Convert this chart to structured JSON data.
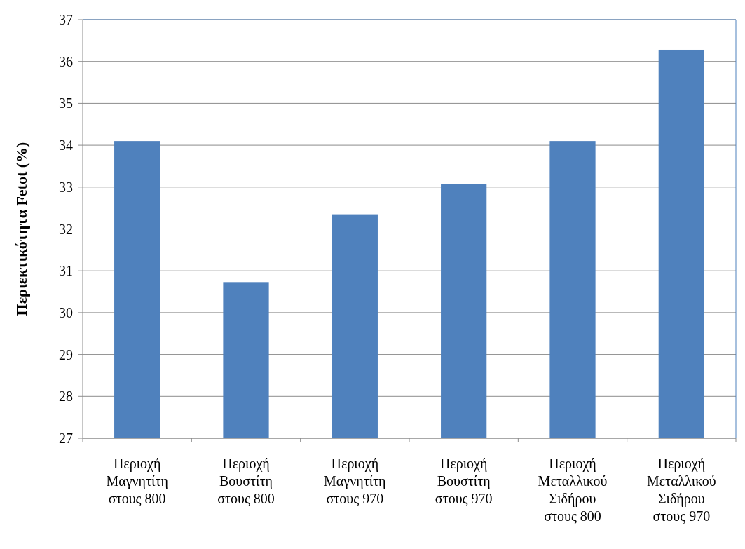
{
  "chart_data": {
    "type": "bar",
    "ylabel": "Περιεκτικότητα Fetot (%)",
    "categories": [
      "Περιοχή Μαγνητίτη στους 800",
      "Περιοχή Βουστίτη στους 800",
      "Περιοχή Μαγνητίτη στους 970",
      "Περιοχή Βουστίτη στους 970",
      "Περιοχή Μεταλλικού Σιδήρου στους 800",
      "Περιοχή Μεταλλικού Σιδήρου στους 970"
    ],
    "values": [
      34.1,
      30.73,
      32.35,
      33.07,
      34.1,
      36.28
    ],
    "color": "#4f81bd",
    "ylim": [
      27,
      37
    ],
    "yticks": [
      27,
      28,
      29,
      30,
      31,
      32,
      33,
      34,
      35,
      36,
      37
    ],
    "grid": "y"
  }
}
